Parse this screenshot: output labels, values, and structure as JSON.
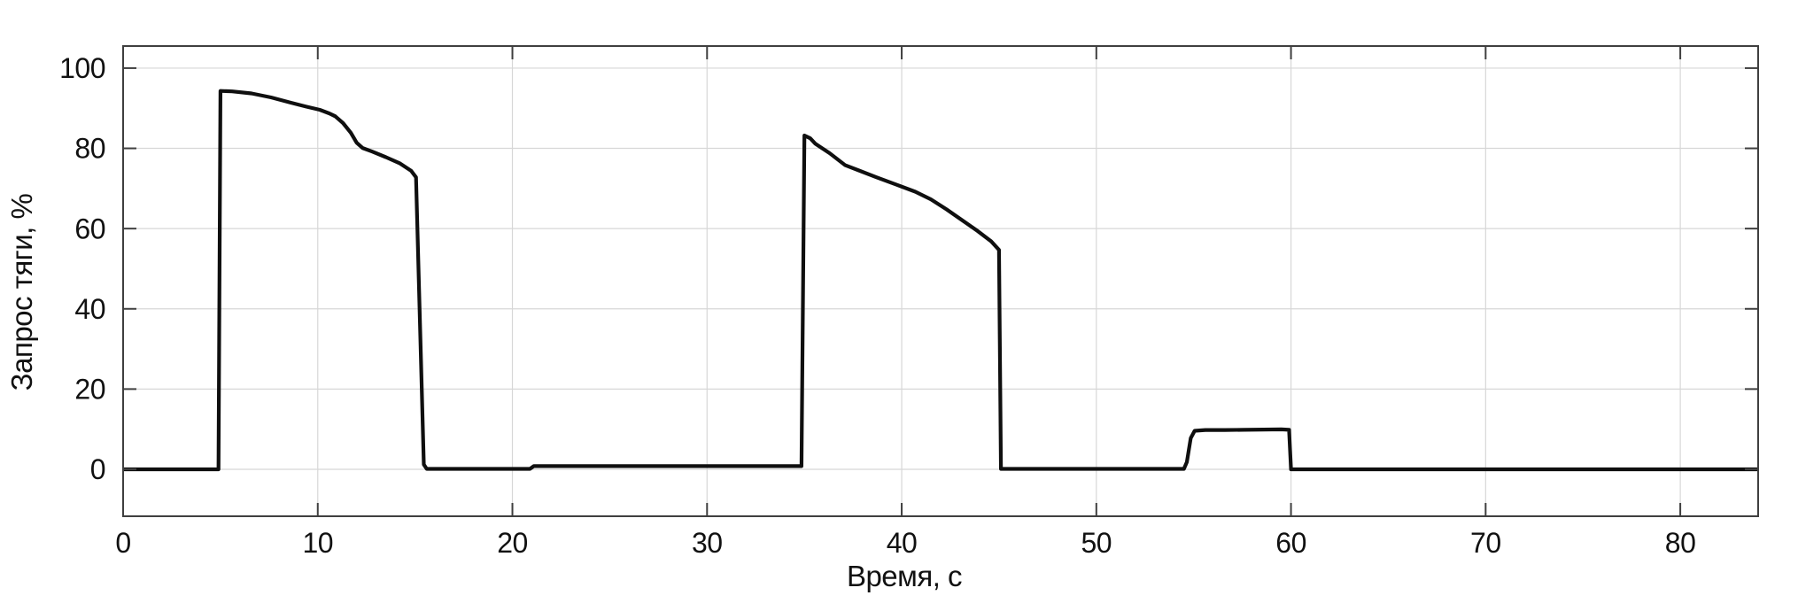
{
  "colors": {
    "background": "#ffffff",
    "line": "#0f0f0f",
    "grid": "#d7d7d7",
    "spine": "#3f3f3f",
    "tick": "#3f3f3f",
    "text": "#111111"
  },
  "chart_data": {
    "type": "line",
    "title": "",
    "xlabel": "Время, с",
    "ylabel": "Запрос тяги, %",
    "xlim": [
      0,
      84
    ],
    "ylim": [
      -11.7,
      105.5
    ],
    "x_ticks": [
      0,
      10,
      20,
      30,
      40,
      50,
      60,
      70,
      80
    ],
    "y_ticks": [
      0,
      20,
      40,
      60,
      80,
      100
    ],
    "grid": true,
    "legend": "none",
    "series": [
      {
        "name": "Запрос тяги",
        "points": [
          [
            0,
            0
          ],
          [
            4.9,
            0
          ],
          [
            5.0,
            94.3
          ],
          [
            5.6,
            94.2
          ],
          [
            6.6,
            93.7
          ],
          [
            7.6,
            92.7
          ],
          [
            8.6,
            91.4
          ],
          [
            9.4,
            90.4
          ],
          [
            10.1,
            89.6
          ],
          [
            10.6,
            88.7
          ],
          [
            10.9,
            88.0
          ],
          [
            11.3,
            86.3
          ],
          [
            11.7,
            83.9
          ],
          [
            12.0,
            81.4
          ],
          [
            12.3,
            80.1
          ],
          [
            12.8,
            79.2
          ],
          [
            13.5,
            77.8
          ],
          [
            14.2,
            76.3
          ],
          [
            14.8,
            74.4
          ],
          [
            15.05,
            72.8
          ],
          [
            15.45,
            1.2
          ],
          [
            15.6,
            0.1
          ],
          [
            20.9,
            0.1
          ],
          [
            21.1,
            0.8
          ],
          [
            34.85,
            0.8
          ],
          [
            35.0,
            83.2
          ],
          [
            35.3,
            82.5
          ],
          [
            35.55,
            81.2
          ],
          [
            35.8,
            80.4
          ],
          [
            36.3,
            78.8
          ],
          [
            37.1,
            75.8
          ],
          [
            37.8,
            74.5
          ],
          [
            38.7,
            72.8
          ],
          [
            39.7,
            71.0
          ],
          [
            40.7,
            69.2
          ],
          [
            41.5,
            67.3
          ],
          [
            42.3,
            64.8
          ],
          [
            43.1,
            62.1
          ],
          [
            43.9,
            59.4
          ],
          [
            44.6,
            56.8
          ],
          [
            45.0,
            54.7
          ],
          [
            45.1,
            0.1
          ],
          [
            54.5,
            0.1
          ],
          [
            54.65,
            1.8
          ],
          [
            54.85,
            7.8
          ],
          [
            55.05,
            9.6
          ],
          [
            55.6,
            9.8
          ],
          [
            56.6,
            9.8
          ],
          [
            57.6,
            9.85
          ],
          [
            58.6,
            9.9
          ],
          [
            59.5,
            9.95
          ],
          [
            59.9,
            9.85
          ],
          [
            60.0,
            0
          ],
          [
            84,
            0
          ]
        ]
      }
    ]
  }
}
